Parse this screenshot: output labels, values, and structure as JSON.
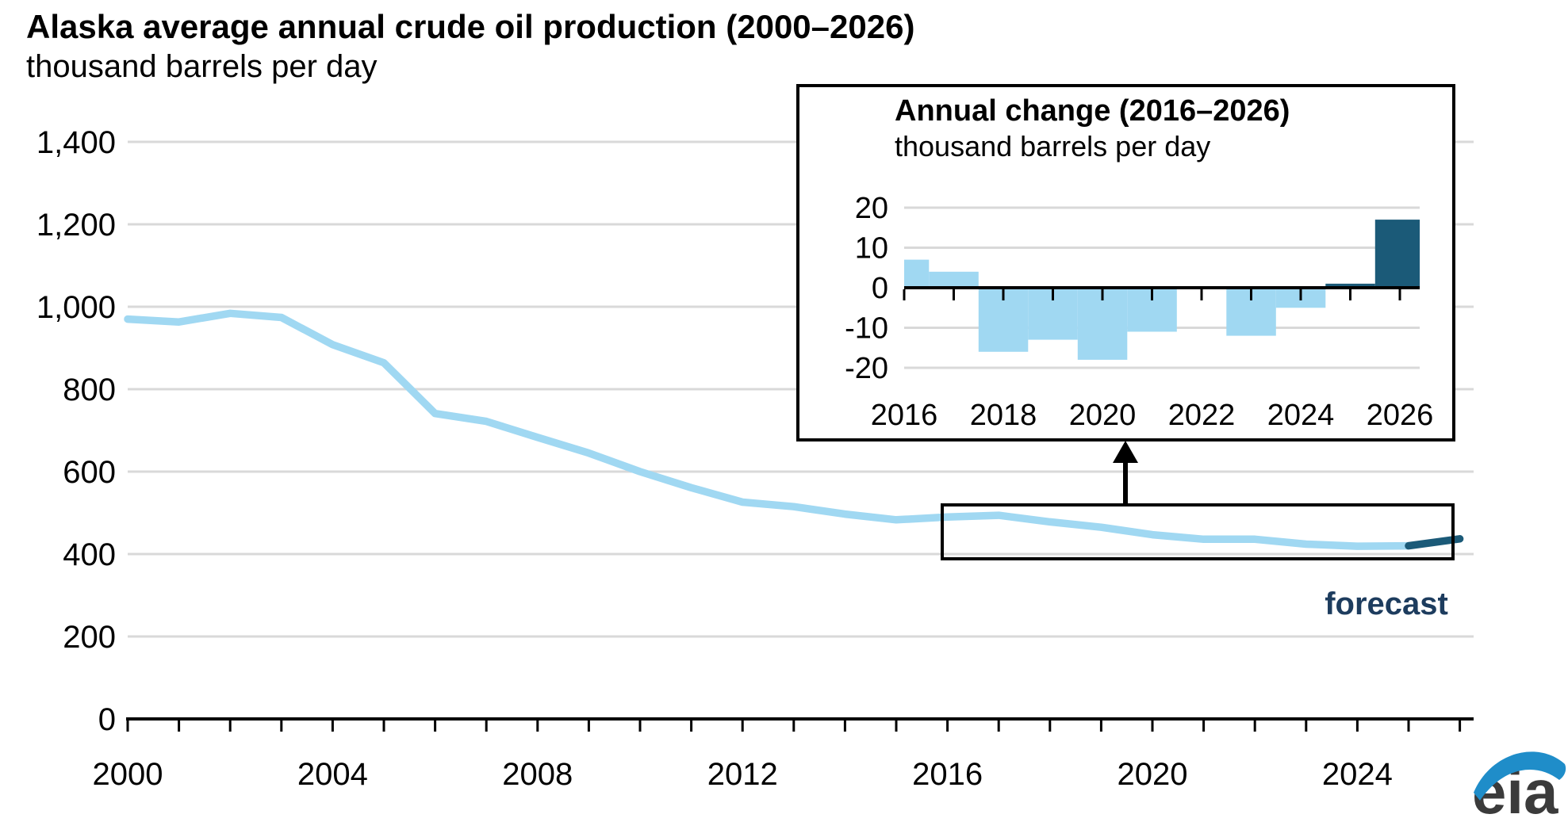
{
  "page": {
    "title": "Alaska average annual crude oil production (2000–2026)",
    "subtitle": "thousand barrels per day",
    "forecast_label": "forecast",
    "logo_text": "eia"
  },
  "colors": {
    "history": "#a0d8f2",
    "forecast": "#1b5a78",
    "forecast_text": "#1d3c5e",
    "gridline": "#d9d9d9",
    "axis": "#000000",
    "logo_blue": "#1f8dc9",
    "logo_gray": "#3b3b3b"
  },
  "chart_data": [
    {
      "type": "line",
      "title": "Alaska average annual crude oil production (2000–2026)",
      "ylabel": "thousand barrels per day",
      "x": [
        2000,
        2001,
        2002,
        2003,
        2004,
        2005,
        2006,
        2007,
        2008,
        2009,
        2010,
        2011,
        2012,
        2013,
        2014,
        2015,
        2016,
        2017,
        2018,
        2019,
        2020,
        2021,
        2022,
        2023,
        2024,
        2025,
        2026
      ],
      "values": [
        970,
        963,
        984,
        974,
        908,
        864,
        741,
        722,
        683,
        645,
        600,
        561,
        526,
        515,
        497,
        483,
        490,
        494,
        478,
        465,
        447,
        436,
        436,
        424,
        419,
        420,
        437
      ],
      "series": [
        {
          "name": "history",
          "year_range": [
            2000,
            2025
          ]
        },
        {
          "name": "forecast",
          "year_range": [
            2025,
            2026
          ]
        }
      ],
      "forecast_start_year": 2025,
      "ylim": [
        0,
        1400
      ],
      "y_ticks": [
        0,
        200,
        400,
        600,
        800,
        1000,
        1200,
        1400
      ],
      "y_tick_labels": [
        "0",
        "200",
        "400",
        "600",
        "800",
        "1,000",
        "1,200",
        "1,400"
      ],
      "x_ticks_labeled": [
        2000,
        2004,
        2008,
        2012,
        2016,
        2020,
        2024
      ],
      "grid": "horizontal",
      "legend_position": "none",
      "annotations": [
        "callout rectangle around 2016–2026 segment",
        "arrow pointing up to inset",
        "forecast label"
      ]
    },
    {
      "type": "bar",
      "title": "Annual change (2016–2026)",
      "ylabel": "thousand barrels per day",
      "categories": [
        2016,
        2017,
        2018,
        2019,
        2020,
        2021,
        2022,
        2023,
        2024,
        2025,
        2026
      ],
      "values": [
        7,
        4,
        -16,
        -13,
        -18,
        -11,
        0,
        -12,
        -5,
        1,
        17
      ],
      "forecast_start_year": 2025,
      "ylim": [
        -20,
        20
      ],
      "y_ticks": [
        -20,
        -10,
        0,
        10,
        20
      ],
      "y_tick_labels": [
        "-20",
        "-10",
        "0",
        "10",
        "20"
      ],
      "x_ticks_labeled": [
        2016,
        2018,
        2020,
        2022,
        2024,
        2026
      ],
      "grid": "horizontal"
    }
  ]
}
